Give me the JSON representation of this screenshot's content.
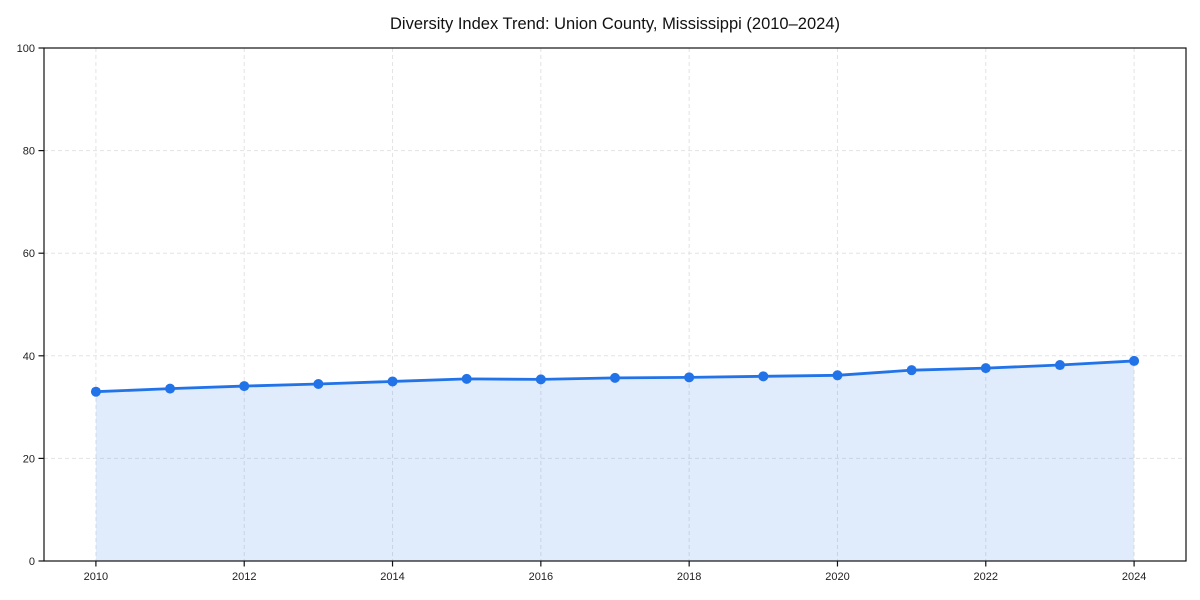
{
  "chart_data": {
    "type": "line",
    "title": "Diversity Index Trend: Union County, Mississippi (2010–2024)",
    "x": [
      2010,
      2011,
      2012,
      2013,
      2014,
      2015,
      2016,
      2017,
      2018,
      2019,
      2020,
      2021,
      2022,
      2023,
      2024
    ],
    "values": [
      33.0,
      33.6,
      34.1,
      34.5,
      35.0,
      35.5,
      35.4,
      35.7,
      35.8,
      36.0,
      36.2,
      37.2,
      37.6,
      38.2,
      39.0
    ],
    "xlabel": "",
    "ylabel": "",
    "xlim": [
      2009.3,
      2024.7
    ],
    "ylim": [
      0,
      100
    ],
    "xticks": [
      2010,
      2012,
      2014,
      2016,
      2018,
      2020,
      2022,
      2024
    ],
    "yticks": [
      0,
      20,
      40,
      60,
      80,
      100
    ],
    "grid": true,
    "grid_style": "dashed",
    "legend": "none",
    "area_fill": true,
    "marker": "circle",
    "colors": {
      "line": "#2273e8",
      "marker": "#2273e8",
      "fill": "rgba(34, 115, 232, 0.14)",
      "grid": "#e3e3e3",
      "axis": "#111111",
      "text": "#1a1a1a",
      "background": "#ffffff"
    }
  }
}
